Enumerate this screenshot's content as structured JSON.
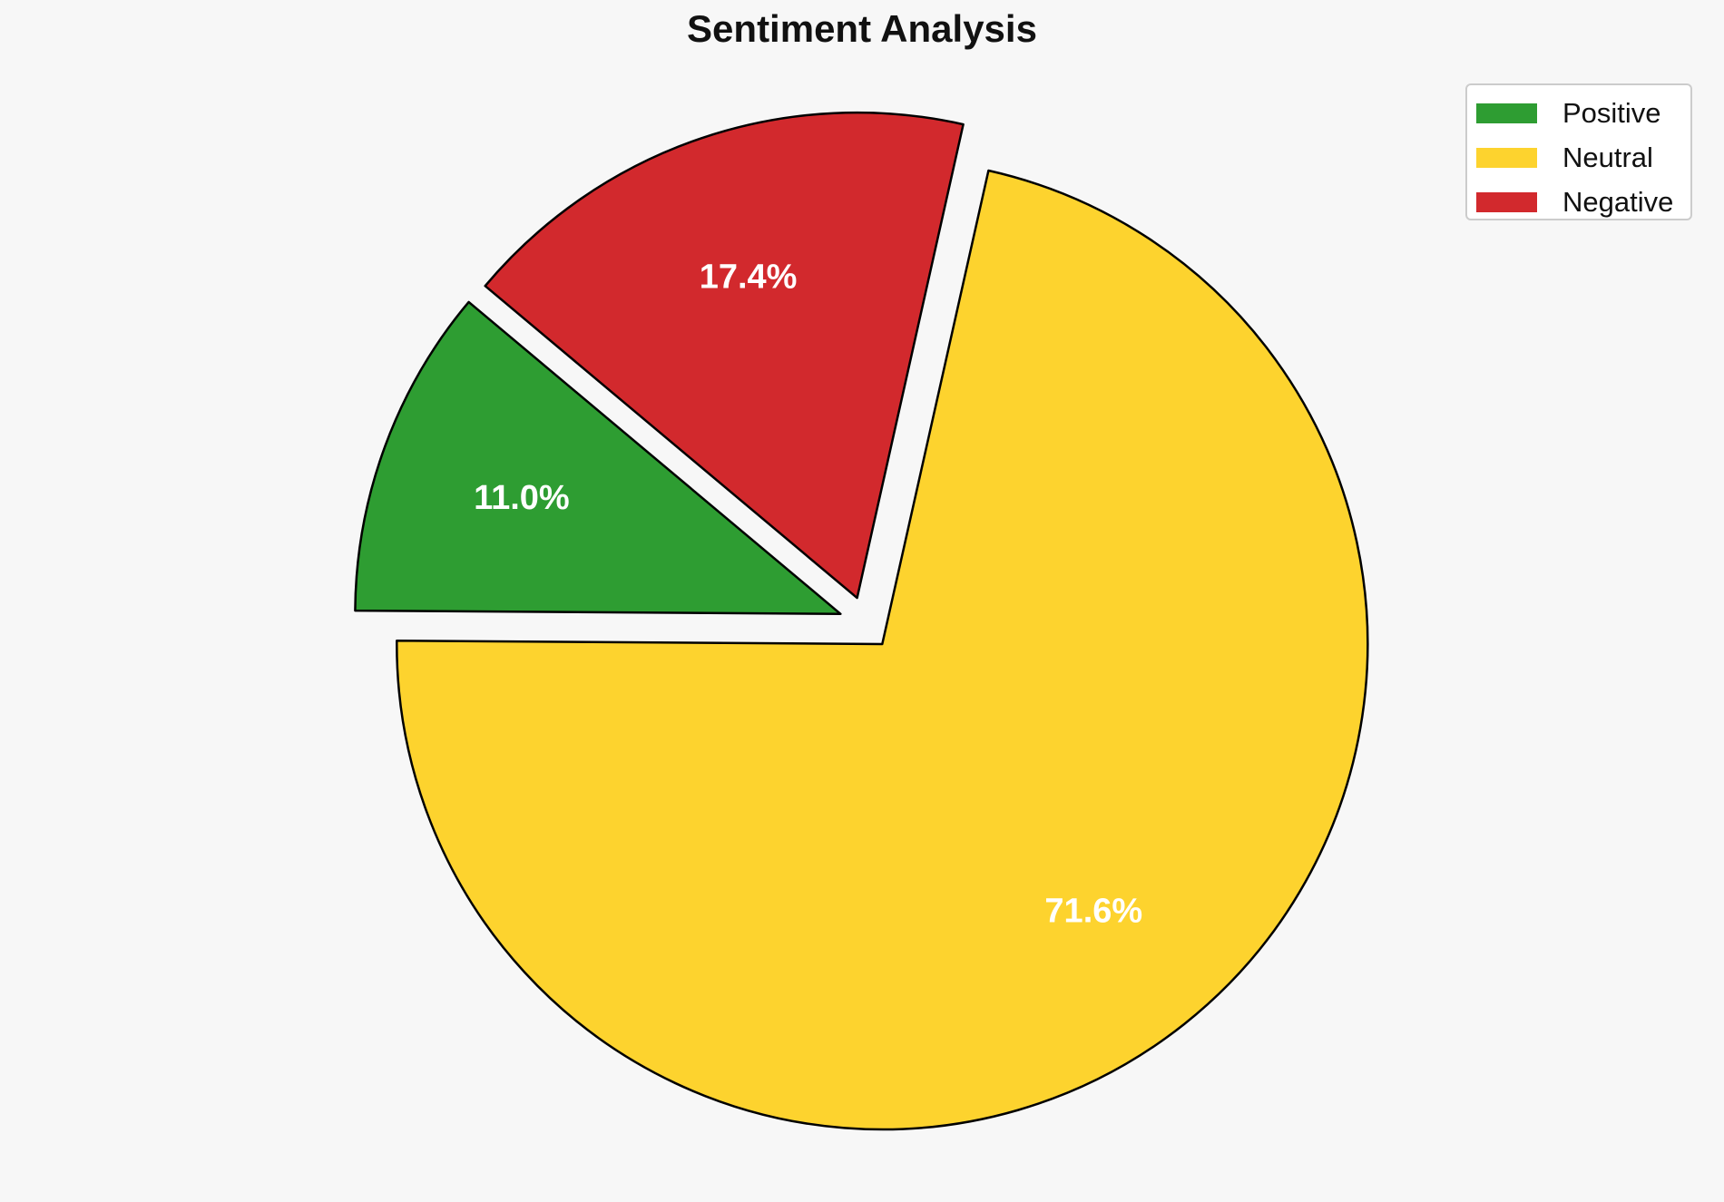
{
  "title": "Sentiment Analysis",
  "background_color": "#f7f7f7",
  "chart_data": {
    "type": "pie",
    "title": "Sentiment Analysis",
    "categories": [
      "Positive",
      "Neutral",
      "Negative"
    ],
    "values": [
      11.0,
      71.6,
      17.4
    ],
    "slice_labels": [
      "11.0%",
      "71.6%",
      "17.4%"
    ],
    "colors": [
      "#2E9D32",
      "#FDD32E",
      "#D2292D"
    ],
    "edge_color": "#000000",
    "slice_label_color": "#ffffff",
    "start_angle": 140,
    "direction": "counterclockwise",
    "explode": 0.055,
    "label_distance": 0.7,
    "legend": {
      "position": "upper right",
      "entries": [
        "Positive",
        "Neutral",
        "Negative"
      ]
    }
  }
}
